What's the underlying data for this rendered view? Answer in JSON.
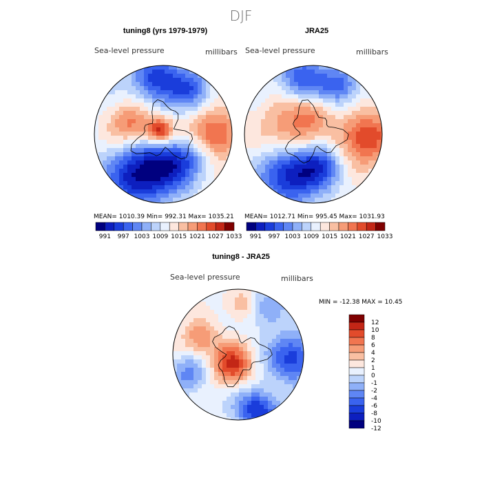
{
  "figure_title": "DJF",
  "colors": {
    "diverging": [
      "#00007f",
      "#0d1fbf",
      "#1a3ddb",
      "#3a63ef",
      "#5f86f4",
      "#8fb0f8",
      "#bcd3fb",
      "#e9f1fe",
      "#fde7de",
      "#f9bfa2",
      "#f69c77",
      "#f17550",
      "#e24b2b",
      "#c32616",
      "#7f0000"
    ]
  },
  "chart_data": [
    {
      "type": "heatmap",
      "subtitle": "tuning8 (yrs 1979-1979)",
      "field_label": "Sea-level pressure",
      "units_label": "millibars",
      "stats": "MEAN=  1010.39    Min=  992.31    Max=  1035.21",
      "mean": 1010.39,
      "min": 992.31,
      "max": 1035.21,
      "colorbar_labels": [
        "991",
        "997",
        "1003",
        "1009",
        "1015",
        "1021",
        "1027",
        "1033"
      ],
      "fields": [
        {
          "x": -0.05,
          "y": -0.05,
          "v": 0.8,
          "s": 0.13
        },
        {
          "x": -0.45,
          "y": -0.15,
          "v": 0.55,
          "s": 0.22
        },
        {
          "x": 0.75,
          "y": 0.0,
          "v": 0.7,
          "s": 0.25
        },
        {
          "x": -0.35,
          "y": 0.6,
          "v": -0.9,
          "s": 0.3
        },
        {
          "x": 0.1,
          "y": 0.45,
          "v": -0.6,
          "s": 0.25
        },
        {
          "x": -0.1,
          "y": -0.8,
          "v": -0.7,
          "s": 0.25
        },
        {
          "x": 0.4,
          "y": -0.65,
          "v": -0.5,
          "s": 0.2
        },
        {
          "x": 0.45,
          "y": 0.3,
          "v": -0.3,
          "s": 0.2
        }
      ]
    },
    {
      "type": "heatmap",
      "subtitle": "JRA25",
      "field_label": "Sea-level pressure",
      "units_label": "millibars",
      "stats": "MEAN=  1012.71    Min=  995.45    Max=  1031.93",
      "mean": 1012.71,
      "min": 995.45,
      "max": 1031.93,
      "colorbar_labels": [
        "991",
        "997",
        "1003",
        "1009",
        "1015",
        "1021",
        "1027",
        "1033"
      ],
      "fields": [
        {
          "x": -0.35,
          "y": -0.1,
          "v": 0.5,
          "s": 0.3
        },
        {
          "x": 0.75,
          "y": 0.05,
          "v": 0.75,
          "s": 0.28
        },
        {
          "x": 0.0,
          "y": -0.35,
          "v": 0.3,
          "s": 0.2
        },
        {
          "x": -0.35,
          "y": 0.6,
          "v": -0.85,
          "s": 0.28
        },
        {
          "x": 0.1,
          "y": 0.45,
          "v": -0.55,
          "s": 0.22
        },
        {
          "x": -0.15,
          "y": -0.8,
          "v": -0.6,
          "s": 0.25
        },
        {
          "x": 0.4,
          "y": -0.7,
          "v": -0.5,
          "s": 0.2
        }
      ]
    },
    {
      "type": "heatmap",
      "subtitle": "tuning8 - JRA25",
      "field_label": "Sea-level pressure",
      "units_label": "millibars",
      "stats": "MIN = -12.38 MAX =  10.45",
      "min": -12.38,
      "max": 10.45,
      "colorbar_labels": [
        "12",
        "10",
        "8",
        "6",
        "4",
        "2",
        "1",
        "0",
        "-1",
        "-2",
        "-4",
        "-6",
        "-8",
        "-10",
        "-12"
      ],
      "fields": [
        {
          "x": -0.1,
          "y": 0.15,
          "v": 0.75,
          "s": 0.22
        },
        {
          "x": -0.6,
          "y": -0.25,
          "v": 0.45,
          "s": 0.2
        },
        {
          "x": 0.05,
          "y": -0.75,
          "v": 0.35,
          "s": 0.18
        },
        {
          "x": 0.85,
          "y": 0.05,
          "v": -0.7,
          "s": 0.25
        },
        {
          "x": 0.3,
          "y": 0.85,
          "v": -0.75,
          "s": 0.22
        },
        {
          "x": -0.75,
          "y": 0.3,
          "v": -0.4,
          "s": 0.2
        },
        {
          "x": 0.45,
          "y": -0.7,
          "v": -0.4,
          "s": 0.2
        }
      ]
    }
  ]
}
